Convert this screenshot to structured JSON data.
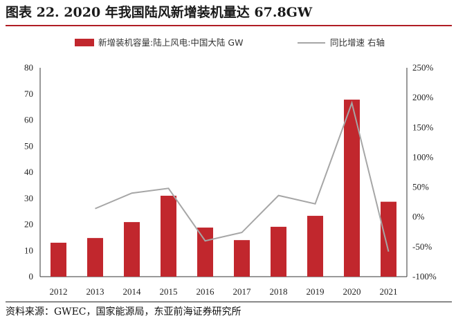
{
  "figure": {
    "title": "图表 22. 2020 年我国陆风新增装机量达 67.8GW",
    "source": "资料来源：GWEC，国家能源局，东亚前海证券研究所"
  },
  "colors": {
    "bar": "#c1272d",
    "line": "#a6a6a6",
    "accent": "#b01c24"
  },
  "chart_data": {
    "type": "bar",
    "title": "",
    "xlabel": "",
    "ylabel": "",
    "categories": [
      "2012",
      "2013",
      "2014",
      "2015",
      "2016",
      "2017",
      "2018",
      "2019",
      "2020",
      "2021"
    ],
    "series": [
      {
        "name": "新增装机容量:陆上风电:中国大陆 GW",
        "type": "bar",
        "axis": "left",
        "values": [
          13.0,
          14.8,
          20.9,
          31.0,
          18.8,
          14.0,
          19.1,
          23.3,
          67.8,
          28.7
        ]
      },
      {
        "name": "同比增速 右轴",
        "type": "line",
        "axis": "right",
        "values": [
          null,
          14,
          40,
          48,
          -40,
          -26,
          36,
          22,
          191,
          -58
        ]
      }
    ],
    "ylim": [
      0,
      80
    ],
    "yticks": [
      0,
      10,
      20,
      30,
      40,
      50,
      60,
      70,
      80
    ],
    "y2lim": [
      -100,
      250
    ],
    "y2ticks": [
      "-100%",
      "-50%",
      "0%",
      "50%",
      "100%",
      "150%",
      "200%",
      "250%"
    ],
    "y2tick_values": [
      -100,
      -50,
      0,
      50,
      100,
      150,
      200,
      250
    ],
    "legend_position": "top",
    "grid": false
  }
}
